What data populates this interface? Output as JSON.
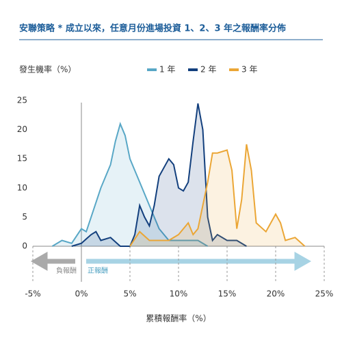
{
  "chart_data": {
    "type": "area",
    "title": "安聯策略 * 成立以來，任意月份進場投資 1、2、3 年之報酬率分佈",
    "y_label": "發生機率（%）",
    "x_label": "累積報酬率（%）",
    "annotations": [
      "負報酬",
      "正報酬"
    ],
    "xlim": [
      -5,
      25
    ],
    "xticks": [
      {
        "value": -5,
        "label": "-5%"
      },
      {
        "value": 0,
        "label": "0%"
      },
      {
        "value": 5,
        "label": "5%"
      },
      {
        "value": 10,
        "label": "10%"
      },
      {
        "value": 15,
        "label": "15%"
      },
      {
        "value": 20,
        "label": "20%"
      },
      {
        "value": 25,
        "label": "25%"
      }
    ],
    "ylim": [
      0,
      25
    ],
    "yticks": [
      0,
      5,
      10,
      15,
      20,
      25
    ],
    "series": [
      {
        "name": "1 年",
        "color": "#58a7c6",
        "x": [
          -3,
          -2,
          -1,
          0,
          0.5,
          1,
          2,
          3,
          3.5,
          4,
          4.5,
          5,
          6,
          7,
          8,
          9,
          10,
          11,
          12,
          13
        ],
        "values": [
          0,
          1,
          0.5,
          3,
          2.5,
          5,
          10,
          14,
          18,
          21,
          19,
          15,
          11,
          7,
          3,
          1,
          1,
          1,
          1,
          0
        ]
      },
      {
        "name": "2 年",
        "color": "#123f7d",
        "x": [
          -1,
          0,
          1,
          1.5,
          2,
          3,
          4,
          5,
          5.5,
          6,
          6.5,
          7,
          7.5,
          8,
          9,
          9.5,
          10,
          10.5,
          11,
          11.5,
          12,
          12.5,
          13,
          13.5,
          14,
          15,
          16,
          17
        ],
        "values": [
          0,
          0.5,
          2,
          2.5,
          1,
          1.5,
          0,
          0,
          2,
          7,
          5,
          3.5,
          7,
          12,
          15,
          14,
          10,
          9.5,
          11,
          18,
          24.5,
          20,
          5,
          1,
          2,
          1,
          1,
          0
        ]
      },
      {
        "name": "3 年",
        "color": "#eba635",
        "x": [
          5,
          6,
          7,
          8,
          9,
          10,
          11,
          11.5,
          12,
          13,
          13.5,
          14,
          15,
          15.5,
          16,
          16.5,
          17,
          17.5,
          18,
          19,
          20,
          20.5,
          21,
          22,
          23
        ],
        "values": [
          0,
          2.5,
          1,
          1,
          1,
          2,
          4,
          2,
          3,
          11,
          16,
          16,
          16.5,
          13,
          3,
          8,
          17.5,
          13,
          4,
          2.5,
          5.5,
          4,
          1,
          1.5,
          0
        ]
      }
    ]
  }
}
